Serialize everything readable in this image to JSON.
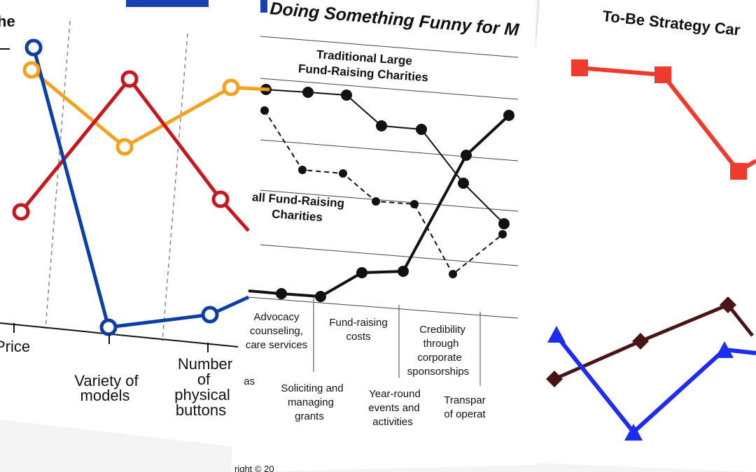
{
  "panels": [
    {
      "title": "he",
      "labels": [
        [
          "Price"
        ],
        [
          "Variety of",
          "models"
        ],
        [
          "Number",
          "of",
          "physical",
          "buttons"
        ]
      ]
    },
    {
      "title": "Doing Something Funny for M",
      "groups": [
        [
          "Traditional Large",
          "Fund-Raising Charities"
        ],
        [
          "all Fund-Raising",
          "Charities"
        ]
      ],
      "labels": [
        [
          "Advocacy",
          "counseling,",
          "care services"
        ],
        [
          "Fund-raising",
          "costs"
        ],
        [
          "Credibility",
          "through",
          "corporate",
          "sponsorships"
        ],
        [
          "eas"
        ],
        [
          "Soliciting and",
          "managing",
          "grants"
        ],
        [
          "Year-round",
          "events and",
          "activities"
        ],
        [
          "Transpar",
          "of operat"
        ]
      ],
      "footer": "right © 20"
    },
    {
      "title": "To-Be Strategy Car"
    }
  ]
}
